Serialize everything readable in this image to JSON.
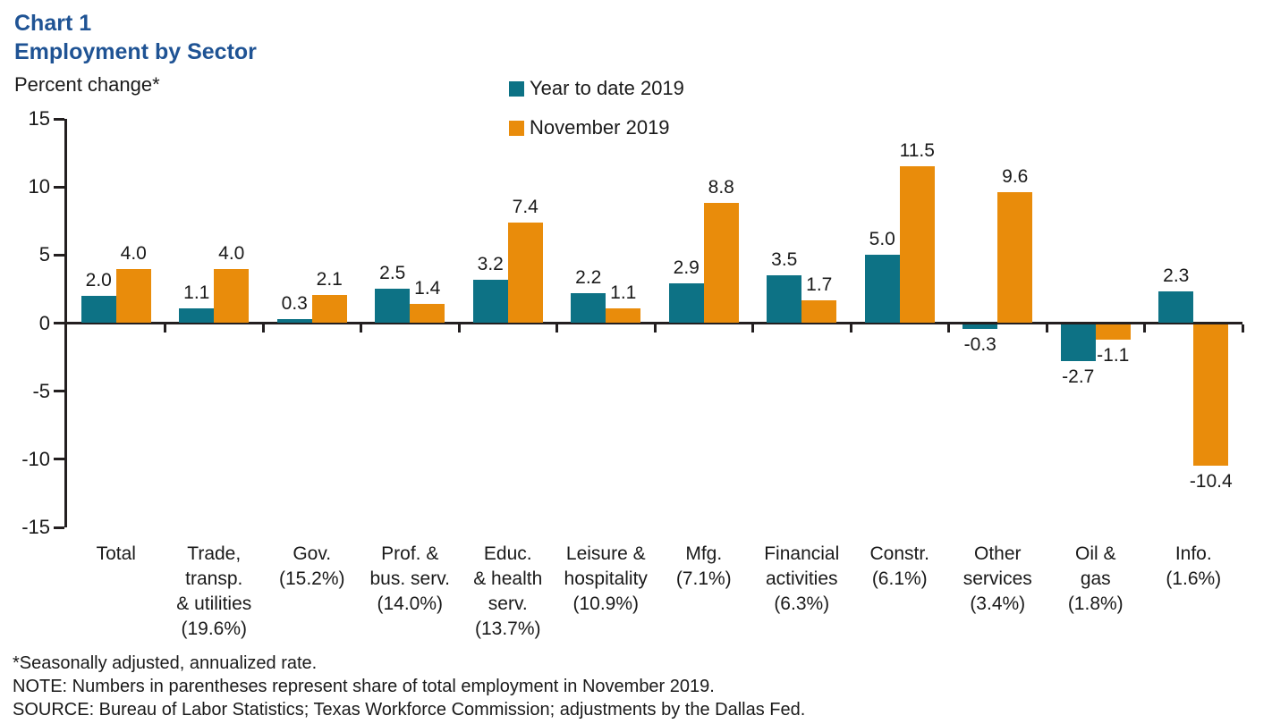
{
  "header": {
    "chart_label": "Chart 1",
    "title": "Employment by Sector"
  },
  "y_axis_label": "Percent change*",
  "legend": [
    {
      "label": "Year to date 2019",
      "color": "#0d7285"
    },
    {
      "label": "November 2019",
      "color": "#e98c0b"
    }
  ],
  "chart_data": {
    "type": "bar",
    "title": "Employment by Sector",
    "subtitle": "Chart 1",
    "ylabel": "Percent change*",
    "xlabel": "",
    "ylim": [
      -15,
      15
    ],
    "yticks": [
      15,
      10,
      5,
      0,
      -5,
      -10,
      -15
    ],
    "grid": false,
    "legend_position": "top-center",
    "categories": [
      "Total",
      "Trade, transp. & utilities (19.6%)",
      "Gov. (15.2%)",
      "Prof. & bus. serv. (14.0%)",
      "Educ. & health serv. (13.7%)",
      "Leisure & hospitality (10.9%)",
      "Mfg. (7.1%)",
      "Financial activities (6.3%)",
      "Constr. (6.1%)",
      "Other services (3.4%)",
      "Oil & gas (1.8%)",
      "Info. (1.6%)"
    ],
    "category_lines": [
      [
        "Total"
      ],
      [
        "Trade,",
        "transp.",
        "& utilities",
        "(19.6%)"
      ],
      [
        "Gov.",
        "(15.2%)"
      ],
      [
        "Prof. &",
        "bus. serv.",
        "(14.0%)"
      ],
      [
        "Educ.",
        "& health",
        "serv.",
        "(13.7%)"
      ],
      [
        "Leisure &",
        "hospitality",
        "(10.9%)"
      ],
      [
        "Mfg.",
        "(7.1%)"
      ],
      [
        "Financial",
        "activities",
        "(6.3%)"
      ],
      [
        "Constr.",
        "(6.1%)"
      ],
      [
        "Other",
        "services",
        "(3.4%)"
      ],
      [
        "Oil &",
        "gas",
        "(1.8%)"
      ],
      [
        "Info.",
        "(1.6%)"
      ]
    ],
    "series": [
      {
        "name": "Year to date 2019",
        "color": "#0d7285",
        "values": [
          2.0,
          1.1,
          0.3,
          2.5,
          3.2,
          2.2,
          2.9,
          3.5,
          5.0,
          -0.3,
          -2.7,
          2.3
        ]
      },
      {
        "name": "November 2019",
        "color": "#e98c0b",
        "values": [
          4.0,
          4.0,
          2.1,
          1.4,
          7.4,
          1.1,
          8.8,
          1.7,
          11.5,
          9.6,
          -1.1,
          -10.4
        ]
      }
    ]
  },
  "footnotes": [
    "*Seasonally adjusted, annualized rate.",
    "NOTE: Numbers in parentheses represent share of total employment in November 2019.",
    "SOURCE: Bureau of Labor Statistics; Texas Workforce Commission; adjustments by the Dallas Fed."
  ]
}
